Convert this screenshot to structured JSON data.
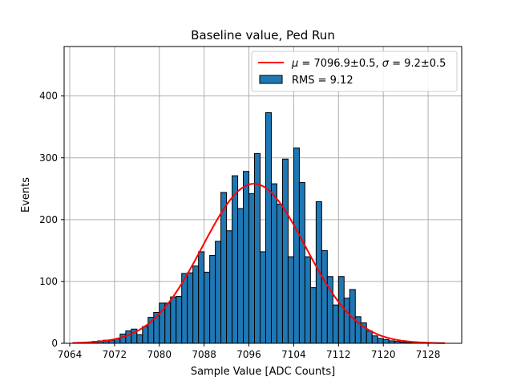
{
  "chart_data": {
    "type": "bar",
    "title": "Baseline value, Ped Run",
    "xlabel": "Sample Value [ADC Counts]",
    "ylabel": "Events",
    "xlim": [
      7063,
      7134
    ],
    "ylim": [
      0,
      480
    ],
    "xticks": [
      7064,
      7072,
      7080,
      7088,
      7096,
      7104,
      7112,
      7120,
      7128
    ],
    "yticks": [
      0,
      100,
      200,
      300,
      400
    ],
    "grid": true,
    "bar_color": "#1f77b4",
    "fit_color": "#ff0000",
    "bins": {
      "start": 7066,
      "width": 1,
      "counts": [
        1,
        2,
        3,
        4,
        5,
        5,
        7,
        15,
        20,
        23,
        14,
        27,
        42,
        50,
        65,
        65,
        75,
        76,
        113,
        114,
        125,
        148,
        115,
        142,
        165,
        244,
        182,
        271,
        218,
        278,
        242,
        307,
        148,
        373,
        258,
        225,
        298,
        140,
        316,
        260,
        140,
        90,
        229,
        150,
        108,
        62,
        108,
        73,
        87,
        43,
        33,
        20,
        12,
        8,
        6,
        4,
        3,
        2,
        1,
        1
      ]
    },
    "fit": {
      "mu": 7096.9,
      "sigma": 9.2,
      "amplitude": 258,
      "x_range": [
        7064.5,
        7131
      ]
    },
    "legend": {
      "position": "top-right",
      "entries": [
        {
          "kind": "line",
          "label_parts": [
            "μ",
            " = 7096.9±0.5, ",
            "σ",
            " = 9.2±0.5"
          ]
        },
        {
          "kind": "patch",
          "label": "RMS = 9.12"
        }
      ]
    }
  }
}
